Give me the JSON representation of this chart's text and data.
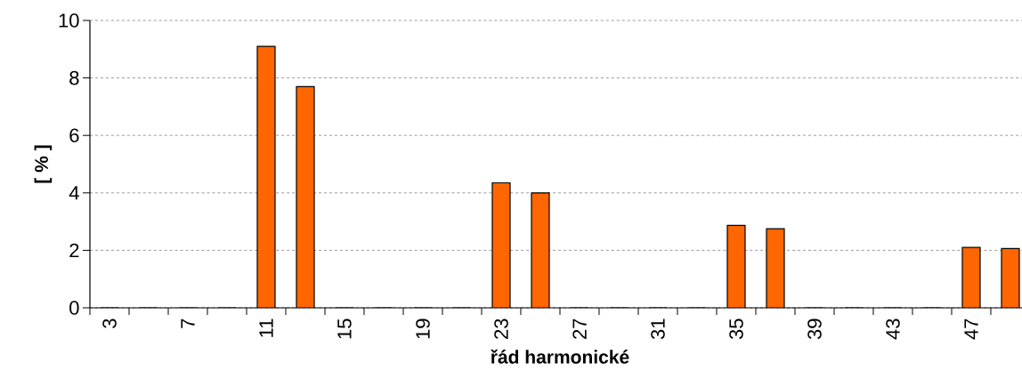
{
  "chart_data": {
    "type": "bar",
    "xlabel": "řád harmonické",
    "ylabel": "[ % ]",
    "categories": [
      "3",
      null,
      "7",
      null,
      "11",
      null,
      "15",
      null,
      "19",
      null,
      "23",
      null,
      "27",
      null,
      "31",
      null,
      "35",
      null,
      "39",
      null,
      "43",
      null,
      "47",
      null
    ],
    "values": [
      0,
      0,
      0,
      0,
      9.1,
      7.7,
      0,
      0,
      0,
      0,
      4.35,
      4.0,
      0,
      0,
      0,
      0,
      2.87,
      2.75,
      0,
      0,
      0,
      0,
      2.1,
      2.06
    ],
    "color": "#ff6600",
    "ylim": [
      0,
      10
    ],
    "yticks": [
      0,
      2,
      4,
      6,
      8,
      10
    ],
    "grid": "y"
  }
}
